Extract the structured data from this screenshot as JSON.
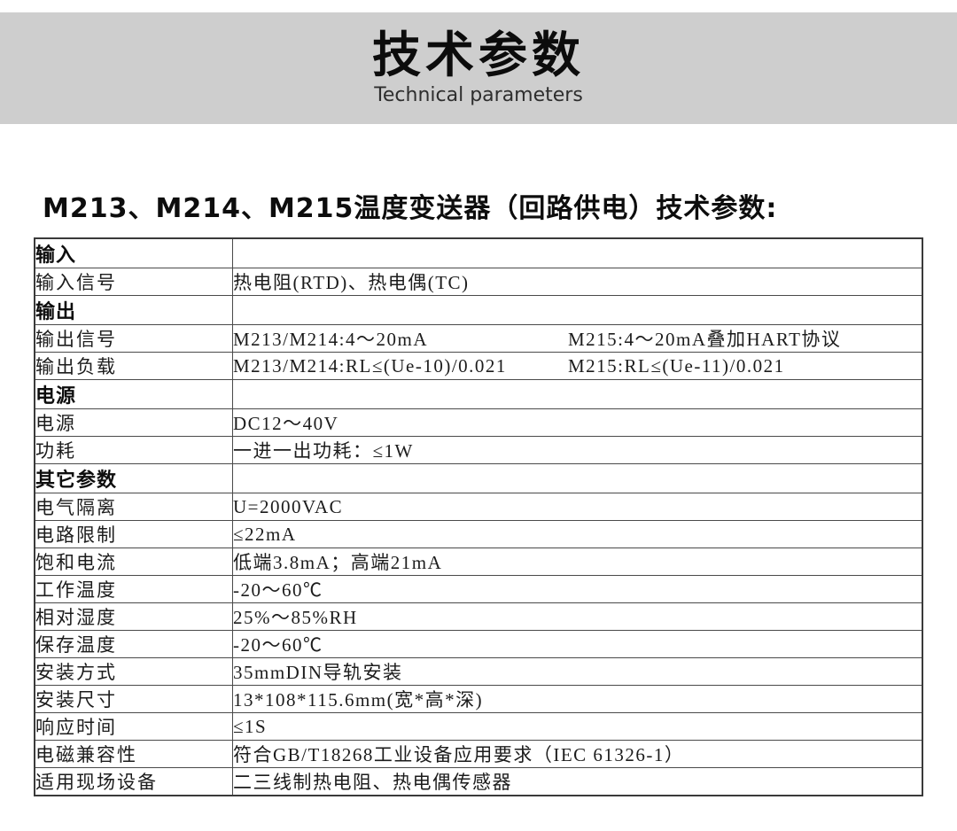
{
  "banner": {
    "title": "技术参数",
    "subtitle": "Technical parameters",
    "bg_color": "#cecece"
  },
  "heading": "M213、M214、M215温度变送器（回路供电）技术参数:",
  "table": {
    "rows": [
      {
        "type": "section",
        "label": "输入",
        "value": ""
      },
      {
        "type": "row",
        "label": "输入信号",
        "value": "热电阻(RTD)、热电偶(TC)"
      },
      {
        "type": "section",
        "label": "输出",
        "value": ""
      },
      {
        "type": "row",
        "label": "输出信号",
        "value_parts": [
          "M213/M214:4～20mA",
          "M215:4～20mA叠加HART协议"
        ]
      },
      {
        "type": "row",
        "label": "输出负载",
        "value_parts": [
          "M213/M214:RL≤(Ue-10)/0.021",
          "M215:RL≤(Ue-11)/0.021"
        ]
      },
      {
        "type": "section",
        "label": "电源",
        "value": ""
      },
      {
        "type": "row",
        "label": "电源",
        "value": "DC12～40V"
      },
      {
        "type": "row",
        "label": "功耗",
        "value": "一进一出功耗：≤1W"
      },
      {
        "type": "section",
        "label": "其它参数",
        "value": ""
      },
      {
        "type": "row",
        "label": "电气隔离",
        "value": "U=2000VAC"
      },
      {
        "type": "row",
        "label": "电路限制",
        "value": "≤22mA"
      },
      {
        "type": "row",
        "label": "饱和电流",
        "value": "低端3.8mA；高端21mA"
      },
      {
        "type": "row",
        "label": "工作温度",
        "value": "-20～60℃"
      },
      {
        "type": "row",
        "label": "相对湿度",
        "value": "25%～85%RH"
      },
      {
        "type": "row",
        "label": "保存温度",
        "value": "-20～60℃"
      },
      {
        "type": "row",
        "label": "安装方式",
        "value": "35mmDIN导轨安装"
      },
      {
        "type": "row",
        "label": "安装尺寸",
        "value": "13*108*115.6mm(宽*高*深)"
      },
      {
        "type": "row",
        "label": "响应时间",
        "value": "≤1S"
      },
      {
        "type": "row",
        "label": "电磁兼容性",
        "value": "符合GB/T18268工业设备应用要求（IEC 61326-1）"
      },
      {
        "type": "row",
        "label": "适用现场设备",
        "value": "二三线制热电阻、热电偶传感器"
      }
    ]
  }
}
